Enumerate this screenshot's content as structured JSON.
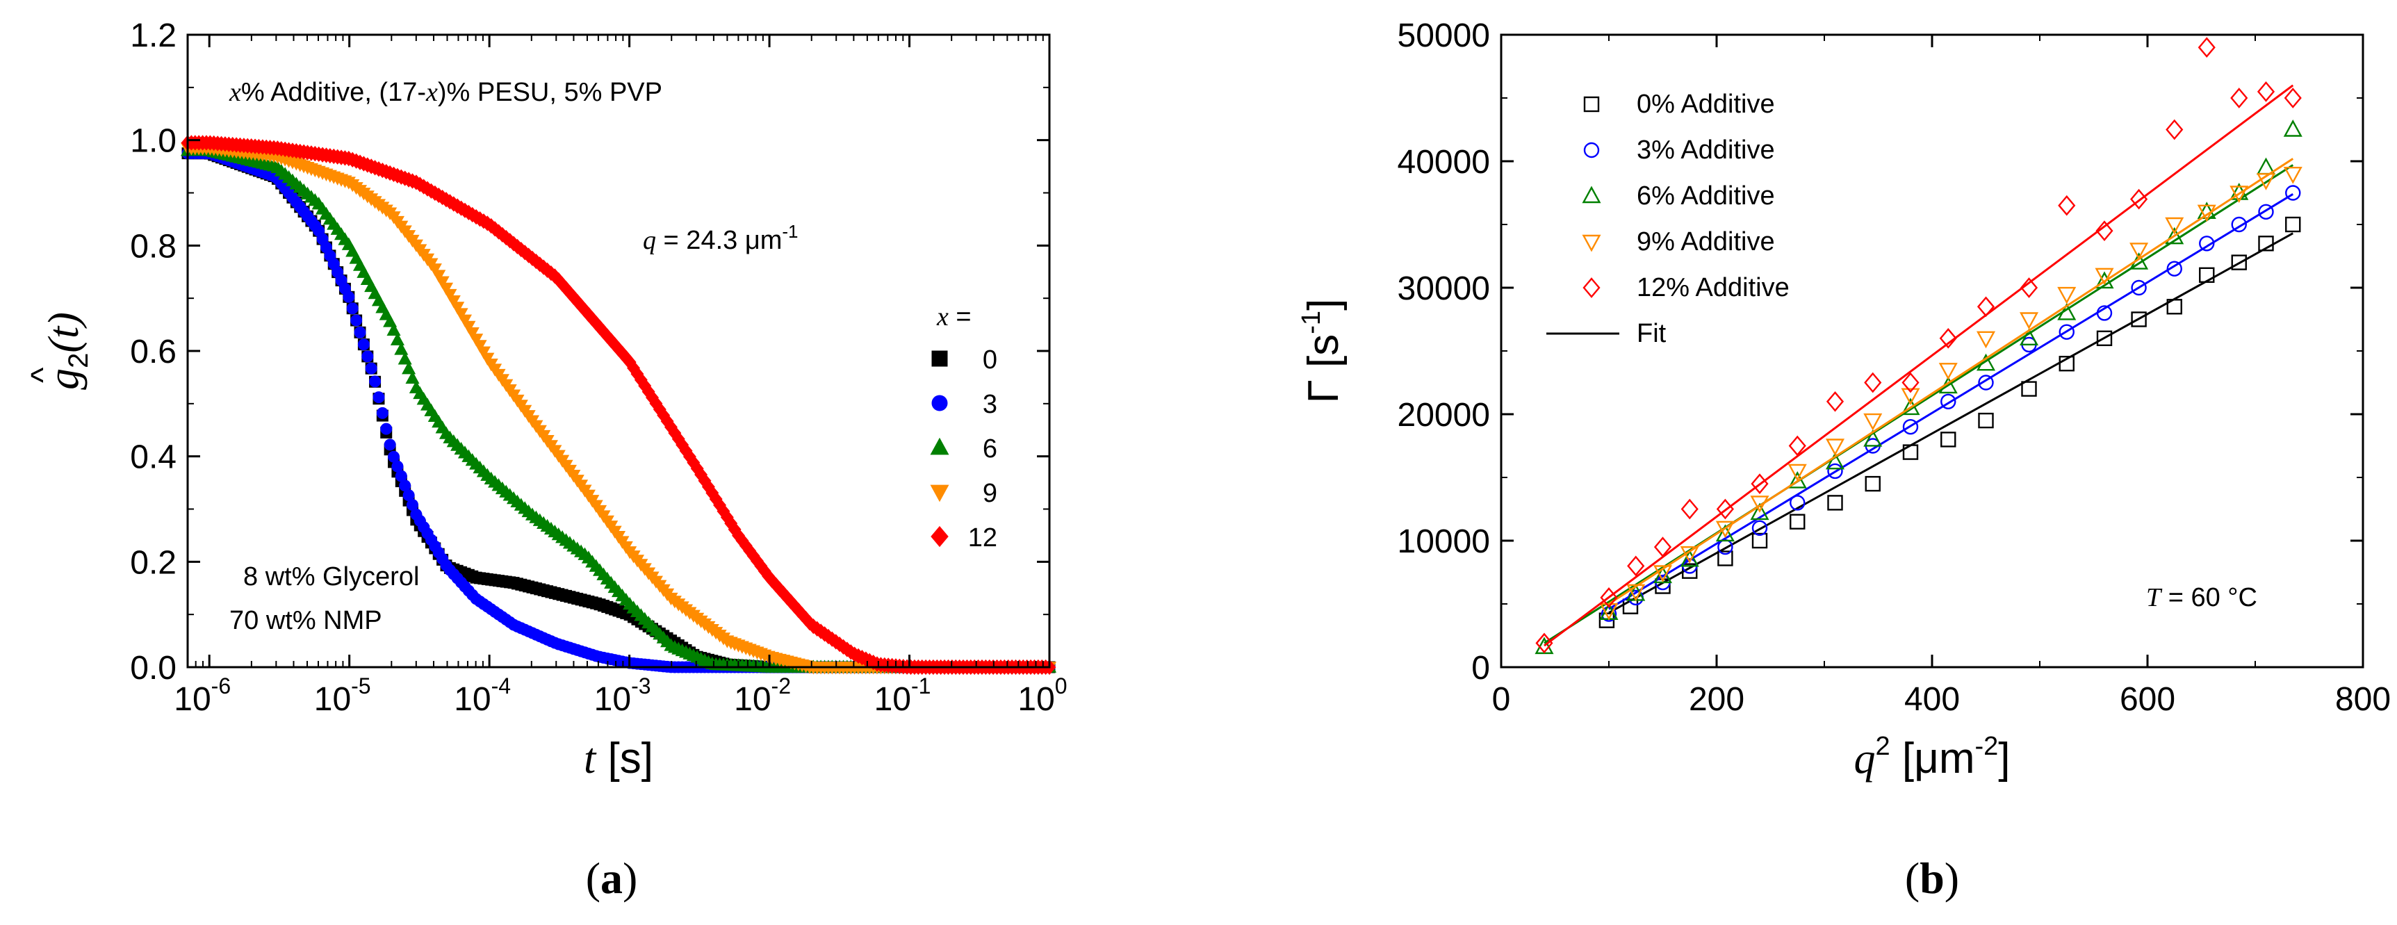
{
  "chart_data": [
    {
      "type": "scatter",
      "panel_label": "a",
      "title": "x%  Additive, (17-x)% PESU, 5% PVP",
      "title_parts": {
        "var": "x",
        "p1": "%  Additive, (17-",
        "p2": ")% PESU, 5% PVP"
      },
      "xlabel": {
        "var": "t",
        "unit": " [s]"
      },
      "ylabel": {
        "base": "g",
        "sub": "2",
        "arg": "(t)",
        "hat": "^"
      },
      "xscale": "log",
      "xlim": [
        7e-07,
        1
      ],
      "ylim": [
        0,
        1.2
      ],
      "x_ticks": [
        {
          "base": "10",
          "exp": "-6",
          "value": 1e-06
        },
        {
          "base": "10",
          "exp": "-5",
          "value": 1e-05
        },
        {
          "base": "10",
          "exp": "-4",
          "value": 0.0001
        },
        {
          "base": "10",
          "exp": "-3",
          "value": 0.001
        },
        {
          "base": "10",
          "exp": "-2",
          "value": 0.01
        },
        {
          "base": "10",
          "exp": "-1",
          "value": 0.1
        },
        {
          "base": "10",
          "exp": "0",
          "value": 1
        }
      ],
      "y_ticks": [
        "0.0",
        "0.2",
        "0.4",
        "0.6",
        "0.8",
        "1.0",
        "1.2"
      ],
      "annotation_q": {
        "var": "q",
        "text": " = 24.3 μm",
        "exp": "-1"
      },
      "annotation_conditions": [
        "8 wt% Glycerol",
        "70 wt% NMP"
      ],
      "legend_title": {
        "var": "x",
        "text": " ="
      },
      "legend_position": "right",
      "series": [
        {
          "name": "0",
          "color": "#000000",
          "marker": "square",
          "points": [
            [
              1e-06,
              0.975
            ],
            [
              3e-06,
              0.93
            ],
            [
              6e-06,
              0.83
            ],
            [
              1e-05,
              0.7
            ],
            [
              1.5e-05,
              0.55
            ],
            [
              2e-05,
              0.4
            ],
            [
              3e-05,
              0.28
            ],
            [
              5e-05,
              0.19
            ],
            [
              8e-05,
              0.17
            ],
            [
              0.00015,
              0.16
            ],
            [
              0.0003,
              0.14
            ],
            [
              0.0006,
              0.12
            ],
            [
              0.001,
              0.1
            ],
            [
              0.002,
              0.05
            ],
            [
              0.003,
              0.02
            ],
            [
              0.005,
              0.005
            ],
            [
              0.01,
              0.0
            ],
            [
              1,
              0.0
            ]
          ]
        },
        {
          "name": "3",
          "color": "#0000ff",
          "marker": "circle",
          "points": [
            [
              1e-06,
              0.975
            ],
            [
              3e-06,
              0.93
            ],
            [
              6e-06,
              0.83
            ],
            [
              1e-05,
              0.7
            ],
            [
              1.5e-05,
              0.55
            ],
            [
              2e-05,
              0.41
            ],
            [
              3e-05,
              0.29
            ],
            [
              5e-05,
              0.19
            ],
            [
              8e-05,
              0.13
            ],
            [
              0.00015,
              0.08
            ],
            [
              0.0003,
              0.045
            ],
            [
              0.0006,
              0.02
            ],
            [
              0.001,
              0.008
            ],
            [
              0.002,
              0.0
            ],
            [
              1,
              0.0
            ]
          ]
        },
        {
          "name": "6",
          "color": "#008000",
          "marker": "triangle-up",
          "points": [
            [
              1e-06,
              0.98
            ],
            [
              3e-06,
              0.95
            ],
            [
              6e-06,
              0.88
            ],
            [
              1e-05,
              0.8
            ],
            [
              2e-05,
              0.65
            ],
            [
              3e-05,
              0.53
            ],
            [
              5e-05,
              0.44
            ],
            [
              0.0001,
              0.36
            ],
            [
              0.0002,
              0.29
            ],
            [
              0.0005,
              0.21
            ],
            [
              0.001,
              0.12
            ],
            [
              0.002,
              0.04
            ],
            [
              0.004,
              0.005
            ],
            [
              0.01,
              0.0
            ],
            [
              1,
              0.0
            ]
          ]
        },
        {
          "name": "9",
          "color": "#ff8c00",
          "marker": "triangle-down",
          "points": [
            [
              1e-06,
              0.985
            ],
            [
              3e-06,
              0.97
            ],
            [
              1e-05,
              0.92
            ],
            [
              2e-05,
              0.86
            ],
            [
              4e-05,
              0.76
            ],
            [
              7e-05,
              0.65
            ],
            [
              0.0001,
              0.58
            ],
            [
              0.0002,
              0.47
            ],
            [
              0.0005,
              0.33
            ],
            [
              0.001,
              0.22
            ],
            [
              0.002,
              0.13
            ],
            [
              0.005,
              0.05
            ],
            [
              0.01,
              0.02
            ],
            [
              0.02,
              0.0
            ],
            [
              1,
              0.0
            ]
          ]
        },
        {
          "name": "12",
          "color": "#ff0000",
          "marker": "diamond",
          "points": [
            [
              1e-06,
              0.995
            ],
            [
              3e-06,
              0.985
            ],
            [
              1e-05,
              0.965
            ],
            [
              3e-05,
              0.92
            ],
            [
              0.0001,
              0.84
            ],
            [
              0.0003,
              0.74
            ],
            [
              0.001,
              0.58
            ],
            [
              0.003,
              0.38
            ],
            [
              0.006,
              0.25
            ],
            [
              0.01,
              0.17
            ],
            [
              0.02,
              0.08
            ],
            [
              0.04,
              0.025
            ],
            [
              0.06,
              0.005
            ],
            [
              0.1,
              0.0
            ],
            [
              1,
              0.0
            ]
          ]
        }
      ]
    },
    {
      "type": "scatter",
      "panel_label": "b",
      "xlabel": {
        "var": "q",
        "exp": "2",
        "unit": " [μm",
        "unit_exp": "-2",
        "close": "]"
      },
      "ylabel": {
        "text": "Γ [s",
        "exp": "-1",
        "close": "]"
      },
      "xlim": [
        0,
        800
      ],
      "ylim": [
        0,
        50000
      ],
      "x_ticks": [
        "0",
        "200",
        "400",
        "600",
        "800"
      ],
      "y_ticks": [
        "0",
        "10000",
        "20000",
        "30000",
        "40000",
        "50000"
      ],
      "annotation": {
        "var": "T",
        "text": " = 60 °C"
      },
      "legend_position": "top-left",
      "fit_label": "Fit",
      "series": [
        {
          "name": "0% Additive",
          "color": "#000000",
          "marker": "square-open",
          "x": [
            98,
            120,
            150,
            175,
            208,
            240,
            275,
            310,
            345,
            380,
            415,
            450,
            490,
            525,
            560,
            592,
            625,
            655,
            685,
            710,
            735
          ],
          "y": [
            3700,
            4800,
            6400,
            7600,
            8600,
            10000,
            11500,
            13000,
            14500,
            17000,
            18000,
            19500,
            22000,
            24000,
            26000,
            27500,
            28500,
            31000,
            32000,
            33500,
            35000
          ],
          "fit": [
            [
              100,
              4300
            ],
            [
              735,
              34300
            ]
          ]
        },
        {
          "name": "3% Additive",
          "color": "#0000ff",
          "marker": "circle-open",
          "x": [
            100,
            125,
            150,
            175,
            208,
            240,
            275,
            310,
            345,
            380,
            415,
            450,
            490,
            525,
            560,
            592,
            625,
            655,
            685,
            710,
            735
          ],
          "y": [
            4200,
            5500,
            6700,
            8000,
            9500,
            11000,
            13000,
            15500,
            17500,
            19000,
            21000,
            22500,
            25500,
            26500,
            28000,
            30000,
            31500,
            33500,
            35000,
            36000,
            37500
          ],
          "fit": [
            [
              100,
              4600
            ],
            [
              735,
              37400
            ]
          ]
        },
        {
          "name": "6% Additive",
          "color": "#008000",
          "marker": "triangle-open",
          "x": [
            40,
            100,
            125,
            150,
            175,
            208,
            240,
            275,
            310,
            345,
            380,
            415,
            450,
            490,
            525,
            560,
            592,
            625,
            655,
            685,
            710,
            735
          ],
          "y": [
            1600,
            4300,
            5800,
            7200,
            8500,
            10500,
            12200,
            14700,
            16200,
            18000,
            20500,
            22200,
            24000,
            26000,
            28000,
            30500,
            32000,
            34000,
            36000,
            37500,
            39500,
            42500
          ],
          "fit": [
            [
              40,
              1900
            ],
            [
              735,
              39700
            ]
          ]
        },
        {
          "name": "9% Additive",
          "color": "#ff8c00",
          "marker": "triangle-down-open",
          "x": [
            100,
            125,
            150,
            175,
            208,
            240,
            275,
            310,
            345,
            380,
            415,
            450,
            490,
            525,
            560,
            592,
            625,
            655,
            685,
            710,
            735
          ],
          "y": [
            4500,
            6000,
            7500,
            9000,
            11000,
            13000,
            15500,
            17500,
            19500,
            21500,
            23500,
            26000,
            27500,
            29500,
            31000,
            33000,
            35000,
            36000,
            37500,
            38500,
            39000
          ],
          "fit": [
            [
              100,
              5000
            ],
            [
              735,
              40200
            ]
          ]
        },
        {
          "name": "12% Additive",
          "color": "#ff0000",
          "marker": "diamond-open",
          "x": [
            40,
            100,
            125,
            150,
            175,
            208,
            240,
            275,
            310,
            345,
            380,
            415,
            450,
            490,
            525,
            560,
            592,
            625,
            655,
            685,
            710,
            735
          ],
          "y": [
            1900,
            5500,
            8000,
            9500,
            12500,
            12500,
            14500,
            17500,
            21000,
            22500,
            22500,
            26000,
            28500,
            30000,
            36500,
            34500,
            37000,
            42500,
            49000,
            45000,
            45500,
            45000
          ],
          "fit": [
            [
              40,
              1700
            ],
            [
              735,
              46000
            ]
          ]
        }
      ]
    }
  ]
}
